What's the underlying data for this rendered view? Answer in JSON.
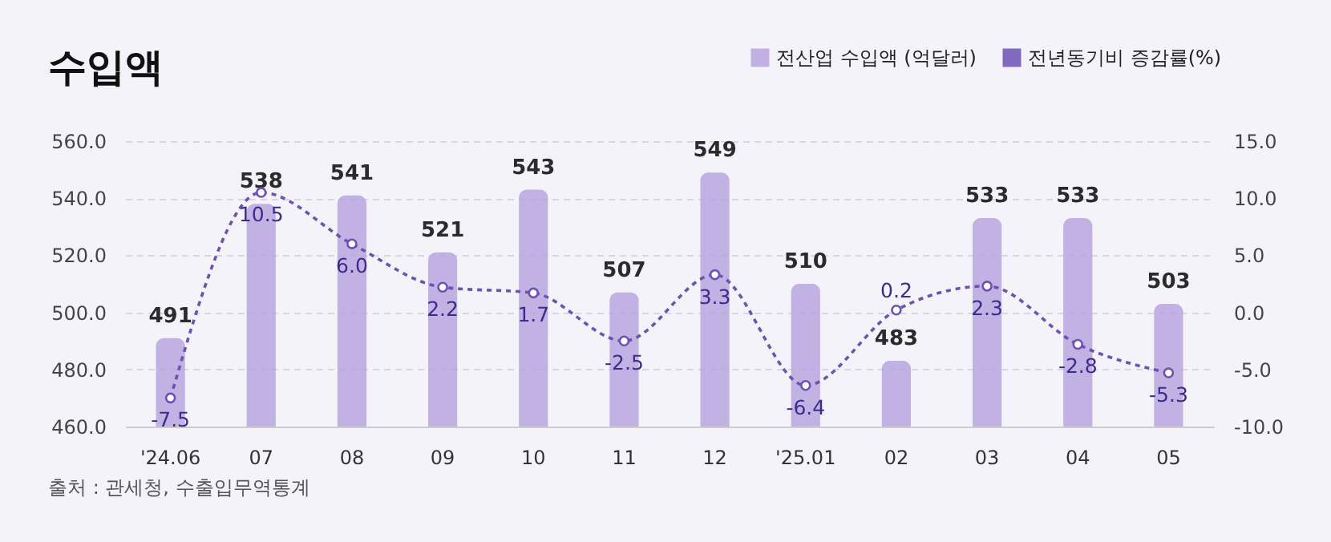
{
  "chart_data": {
    "type": "bar",
    "title": "수입액",
    "categories": [
      "'24.06",
      "07",
      "08",
      "09",
      "10",
      "11",
      "12",
      "'25.01",
      "02",
      "03",
      "04",
      "05"
    ],
    "series": [
      {
        "name": "전산업 수입액 (억달러)",
        "type": "bar",
        "color": "#b7a6df",
        "values": [
          491,
          538,
          541,
          521,
          543,
          507,
          549,
          510,
          483,
          533,
          533,
          503
        ],
        "value_labels": [
          "491",
          "538",
          "541",
          "521",
          "543",
          "507",
          "549",
          "510",
          "483",
          "533",
          "533",
          "503"
        ]
      },
      {
        "name": "전년동기비 증감률(%)",
        "type": "line",
        "axis": "y2",
        "color": "#6c52b4",
        "line_style": "dashed",
        "marker": "circle",
        "values": [
          -7.5,
          10.5,
          6.0,
          2.2,
          1.7,
          -2.5,
          3.3,
          -6.4,
          0.2,
          2.3,
          -2.8,
          -5.3
        ],
        "value_labels": [
          "-7.5",
          "10.5",
          "6.0",
          "2.2",
          "1.7",
          "-2.5",
          "3.3",
          "-6.4",
          "0.2",
          "2.3",
          "-2.8",
          "-5.3"
        ]
      }
    ],
    "ylim": [
      460,
      560
    ],
    "yticks": [
      {
        "value": 460,
        "label": "460.0"
      },
      {
        "value": 480,
        "label": "480.0"
      },
      {
        "value": 500,
        "label": "500.0"
      },
      {
        "value": 520,
        "label": "520.0"
      },
      {
        "value": 540,
        "label": "540.0"
      },
      {
        "value": 560,
        "label": "560.0"
      }
    ],
    "y2lim": [
      -10,
      15
    ],
    "y2ticks": [
      {
        "value": -10,
        "label": "-10.0"
      },
      {
        "value": -5,
        "label": "-5.0"
      },
      {
        "value": 0,
        "label": "0.0"
      },
      {
        "value": 5,
        "label": "5.0"
      },
      {
        "value": 10,
        "label": "10.0"
      },
      {
        "value": 15,
        "label": "15.0"
      }
    ],
    "grid": "y",
    "legend": "top right",
    "annotations": [
      "출처 : 관세청, 수출입무역통계"
    ]
  }
}
